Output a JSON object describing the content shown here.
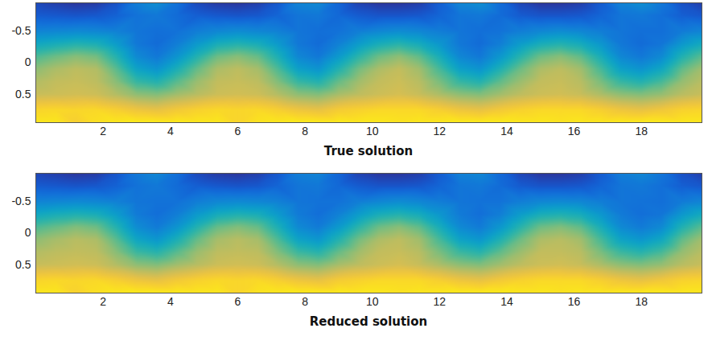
{
  "chart_data": [
    {
      "type": "heatmap",
      "xlabel": "True solution",
      "xlim": [
        0,
        19.8
      ],
      "ylim": [
        0.95,
        -0.95
      ],
      "zlim": [
        0,
        1
      ],
      "xticks": [
        2,
        4,
        6,
        8,
        10,
        12,
        14,
        16,
        18
      ],
      "yticks": [
        -0.5,
        0,
        0.5
      ],
      "x": [
        0,
        0.6,
        1.2,
        1.8,
        2.4,
        3,
        3.6,
        4.2,
        4.8,
        5.4,
        6,
        6.6,
        7.2,
        7.8,
        8.4,
        9,
        9.6,
        10.2,
        10.8,
        11.4,
        12,
        12.6,
        13.2,
        13.8,
        14.4,
        15,
        15.6,
        16.2,
        16.8,
        17.4,
        18,
        18.6,
        19.2,
        19.8
      ],
      "y": [
        -0.95,
        -0.75,
        -0.5,
        -0.3,
        -0.1,
        0.1,
        0.3,
        0.5,
        0.75,
        0.95
      ],
      "z": [
        [
          0.08,
          0.13,
          0.26,
          0.4,
          0.54,
          0.64,
          0.7,
          0.74,
          0.9,
          0.95
        ],
        [
          0.05,
          0.12,
          0.27,
          0.43,
          0.59,
          0.69,
          0.73,
          0.75,
          0.91,
          0.95
        ],
        [
          0.03,
          0.11,
          0.28,
          0.46,
          0.63,
          0.72,
          0.74,
          0.76,
          0.9,
          0.88
        ],
        [
          0.04,
          0.12,
          0.27,
          0.44,
          0.6,
          0.7,
          0.72,
          0.75,
          0.91,
          0.93
        ],
        [
          0.1,
          0.15,
          0.25,
          0.35,
          0.46,
          0.56,
          0.63,
          0.7,
          0.88,
          0.95
        ],
        [
          0.24,
          0.2,
          0.21,
          0.22,
          0.28,
          0.38,
          0.5,
          0.64,
          0.84,
          0.96
        ],
        [
          0.3,
          0.22,
          0.19,
          0.18,
          0.22,
          0.32,
          0.46,
          0.62,
          0.82,
          0.96
        ],
        [
          0.2,
          0.18,
          0.2,
          0.24,
          0.32,
          0.44,
          0.56,
          0.67,
          0.86,
          0.96
        ],
        [
          0.08,
          0.14,
          0.24,
          0.34,
          0.46,
          0.58,
          0.66,
          0.71,
          0.89,
          0.95
        ],
        [
          0.04,
          0.12,
          0.27,
          0.43,
          0.59,
          0.69,
          0.73,
          0.75,
          0.91,
          0.95
        ],
        [
          0.03,
          0.11,
          0.29,
          0.46,
          0.63,
          0.72,
          0.74,
          0.76,
          0.9,
          0.9
        ],
        [
          0.05,
          0.12,
          0.27,
          0.43,
          0.58,
          0.68,
          0.72,
          0.75,
          0.91,
          0.94
        ],
        [
          0.12,
          0.16,
          0.25,
          0.34,
          0.44,
          0.54,
          0.62,
          0.7,
          0.88,
          0.95
        ],
        [
          0.26,
          0.21,
          0.21,
          0.22,
          0.27,
          0.37,
          0.5,
          0.64,
          0.84,
          0.96
        ],
        [
          0.28,
          0.22,
          0.19,
          0.18,
          0.22,
          0.32,
          0.46,
          0.62,
          0.82,
          0.96
        ],
        [
          0.16,
          0.17,
          0.2,
          0.25,
          0.34,
          0.46,
          0.58,
          0.68,
          0.87,
          0.96
        ],
        [
          0.06,
          0.13,
          0.24,
          0.35,
          0.48,
          0.6,
          0.67,
          0.72,
          0.89,
          0.95
        ],
        [
          0.03,
          0.11,
          0.27,
          0.43,
          0.59,
          0.69,
          0.73,
          0.75,
          0.91,
          0.95
        ],
        [
          0.03,
          0.11,
          0.29,
          0.47,
          0.64,
          0.73,
          0.75,
          0.77,
          0.91,
          0.94
        ],
        [
          0.05,
          0.12,
          0.27,
          0.42,
          0.57,
          0.67,
          0.71,
          0.74,
          0.91,
          0.95
        ],
        [
          0.14,
          0.16,
          0.24,
          0.33,
          0.43,
          0.53,
          0.61,
          0.69,
          0.88,
          0.95
        ],
        [
          0.27,
          0.21,
          0.21,
          0.22,
          0.27,
          0.37,
          0.5,
          0.64,
          0.84,
          0.96
        ],
        [
          0.3,
          0.22,
          0.19,
          0.18,
          0.22,
          0.32,
          0.46,
          0.62,
          0.82,
          0.96
        ],
        [
          0.18,
          0.18,
          0.2,
          0.24,
          0.33,
          0.45,
          0.57,
          0.67,
          0.86,
          0.96
        ],
        [
          0.07,
          0.13,
          0.24,
          0.35,
          0.47,
          0.59,
          0.66,
          0.72,
          0.89,
          0.95
        ],
        [
          0.03,
          0.11,
          0.27,
          0.43,
          0.59,
          0.69,
          0.73,
          0.75,
          0.91,
          0.95
        ],
        [
          0.03,
          0.11,
          0.29,
          0.46,
          0.63,
          0.72,
          0.74,
          0.76,
          0.91,
          0.94
        ],
        [
          0.05,
          0.12,
          0.27,
          0.42,
          0.57,
          0.67,
          0.71,
          0.74,
          0.91,
          0.95
        ],
        [
          0.13,
          0.16,
          0.24,
          0.33,
          0.43,
          0.53,
          0.61,
          0.69,
          0.88,
          0.95
        ],
        [
          0.26,
          0.21,
          0.21,
          0.22,
          0.27,
          0.37,
          0.5,
          0.64,
          0.84,
          0.96
        ],
        [
          0.3,
          0.22,
          0.19,
          0.18,
          0.22,
          0.32,
          0.46,
          0.62,
          0.82,
          0.96
        ],
        [
          0.22,
          0.19,
          0.19,
          0.21,
          0.28,
          0.4,
          0.53,
          0.65,
          0.85,
          0.96
        ],
        [
          0.1,
          0.14,
          0.23,
          0.33,
          0.45,
          0.57,
          0.65,
          0.71,
          0.89,
          0.95
        ],
        [
          0.05,
          0.12,
          0.26,
          0.41,
          0.56,
          0.67,
          0.71,
          0.74,
          0.9,
          0.95
        ]
      ]
    },
    {
      "type": "heatmap",
      "xlabel": "Reduced solution",
      "xlim": [
        0,
        19.8
      ],
      "ylim": [
        0.95,
        -0.95
      ],
      "zlim": [
        0,
        1
      ],
      "xticks": [
        2,
        4,
        6,
        8,
        10,
        12,
        14,
        16,
        18
      ],
      "yticks": [
        -0.5,
        0,
        0.5
      ],
      "x": [
        0,
        0.6,
        1.2,
        1.8,
        2.4,
        3,
        3.6,
        4.2,
        4.8,
        5.4,
        6,
        6.6,
        7.2,
        7.8,
        8.4,
        9,
        9.6,
        10.2,
        10.8,
        11.4,
        12,
        12.6,
        13.2,
        13.8,
        14.4,
        15,
        15.6,
        16.2,
        16.8,
        17.4,
        18,
        18.6,
        19.2,
        19.8
      ],
      "y": [
        -0.95,
        -0.75,
        -0.5,
        -0.3,
        -0.1,
        0.1,
        0.3,
        0.5,
        0.75,
        0.95
      ],
      "z": [
        [
          0.07,
          0.13,
          0.26,
          0.4,
          0.54,
          0.64,
          0.7,
          0.74,
          0.9,
          0.95
        ],
        [
          0.05,
          0.12,
          0.27,
          0.43,
          0.58,
          0.68,
          0.72,
          0.75,
          0.91,
          0.95
        ],
        [
          0.03,
          0.11,
          0.28,
          0.45,
          0.62,
          0.71,
          0.73,
          0.76,
          0.9,
          0.89
        ],
        [
          0.04,
          0.12,
          0.27,
          0.43,
          0.59,
          0.69,
          0.72,
          0.75,
          0.91,
          0.93
        ],
        [
          0.11,
          0.15,
          0.25,
          0.35,
          0.46,
          0.56,
          0.63,
          0.7,
          0.88,
          0.95
        ],
        [
          0.22,
          0.2,
          0.21,
          0.23,
          0.29,
          0.39,
          0.51,
          0.64,
          0.84,
          0.96
        ],
        [
          0.27,
          0.22,
          0.2,
          0.19,
          0.23,
          0.33,
          0.47,
          0.62,
          0.82,
          0.96
        ],
        [
          0.19,
          0.18,
          0.2,
          0.24,
          0.32,
          0.44,
          0.56,
          0.67,
          0.86,
          0.96
        ],
        [
          0.08,
          0.14,
          0.24,
          0.34,
          0.46,
          0.58,
          0.66,
          0.71,
          0.89,
          0.95
        ],
        [
          0.04,
          0.12,
          0.27,
          0.42,
          0.58,
          0.68,
          0.72,
          0.75,
          0.91,
          0.95
        ],
        [
          0.03,
          0.11,
          0.28,
          0.45,
          0.62,
          0.71,
          0.73,
          0.76,
          0.9,
          0.9
        ],
        [
          0.05,
          0.12,
          0.27,
          0.43,
          0.58,
          0.68,
          0.72,
          0.75,
          0.91,
          0.94
        ],
        [
          0.12,
          0.16,
          0.25,
          0.34,
          0.44,
          0.54,
          0.62,
          0.7,
          0.88,
          0.95
        ],
        [
          0.24,
          0.21,
          0.21,
          0.23,
          0.28,
          0.38,
          0.51,
          0.64,
          0.84,
          0.96
        ],
        [
          0.26,
          0.22,
          0.2,
          0.19,
          0.23,
          0.33,
          0.47,
          0.62,
          0.82,
          0.96
        ],
        [
          0.16,
          0.17,
          0.2,
          0.25,
          0.34,
          0.46,
          0.58,
          0.68,
          0.87,
          0.96
        ],
        [
          0.06,
          0.13,
          0.24,
          0.35,
          0.48,
          0.6,
          0.67,
          0.72,
          0.89,
          0.95
        ],
        [
          0.03,
          0.11,
          0.27,
          0.43,
          0.59,
          0.69,
          0.73,
          0.75,
          0.91,
          0.95
        ],
        [
          0.03,
          0.11,
          0.29,
          0.46,
          0.63,
          0.72,
          0.74,
          0.77,
          0.91,
          0.94
        ],
        [
          0.05,
          0.12,
          0.27,
          0.42,
          0.57,
          0.67,
          0.71,
          0.74,
          0.91,
          0.95
        ],
        [
          0.13,
          0.16,
          0.24,
          0.33,
          0.43,
          0.53,
          0.61,
          0.69,
          0.88,
          0.95
        ],
        [
          0.25,
          0.21,
          0.21,
          0.23,
          0.28,
          0.38,
          0.51,
          0.64,
          0.84,
          0.96
        ],
        [
          0.27,
          0.22,
          0.2,
          0.19,
          0.23,
          0.33,
          0.47,
          0.62,
          0.82,
          0.96
        ],
        [
          0.17,
          0.18,
          0.2,
          0.24,
          0.33,
          0.45,
          0.57,
          0.67,
          0.86,
          0.96
        ],
        [
          0.07,
          0.13,
          0.24,
          0.35,
          0.47,
          0.59,
          0.66,
          0.72,
          0.89,
          0.95
        ],
        [
          0.03,
          0.11,
          0.27,
          0.43,
          0.59,
          0.69,
          0.73,
          0.75,
          0.91,
          0.95
        ],
        [
          0.03,
          0.11,
          0.28,
          0.45,
          0.62,
          0.71,
          0.73,
          0.76,
          0.91,
          0.94
        ],
        [
          0.05,
          0.12,
          0.27,
          0.42,
          0.57,
          0.67,
          0.71,
          0.74,
          0.91,
          0.95
        ],
        [
          0.13,
          0.16,
          0.24,
          0.33,
          0.43,
          0.53,
          0.61,
          0.69,
          0.88,
          0.95
        ],
        [
          0.24,
          0.21,
          0.21,
          0.23,
          0.28,
          0.38,
          0.51,
          0.64,
          0.84,
          0.96
        ],
        [
          0.27,
          0.22,
          0.2,
          0.19,
          0.23,
          0.33,
          0.47,
          0.62,
          0.82,
          0.96
        ],
        [
          0.21,
          0.19,
          0.19,
          0.21,
          0.28,
          0.4,
          0.53,
          0.65,
          0.85,
          0.96
        ],
        [
          0.1,
          0.14,
          0.23,
          0.33,
          0.45,
          0.57,
          0.65,
          0.71,
          0.89,
          0.95
        ],
        [
          0.05,
          0.12,
          0.26,
          0.41,
          0.56,
          0.67,
          0.71,
          0.74,
          0.9,
          0.95
        ]
      ]
    }
  ]
}
